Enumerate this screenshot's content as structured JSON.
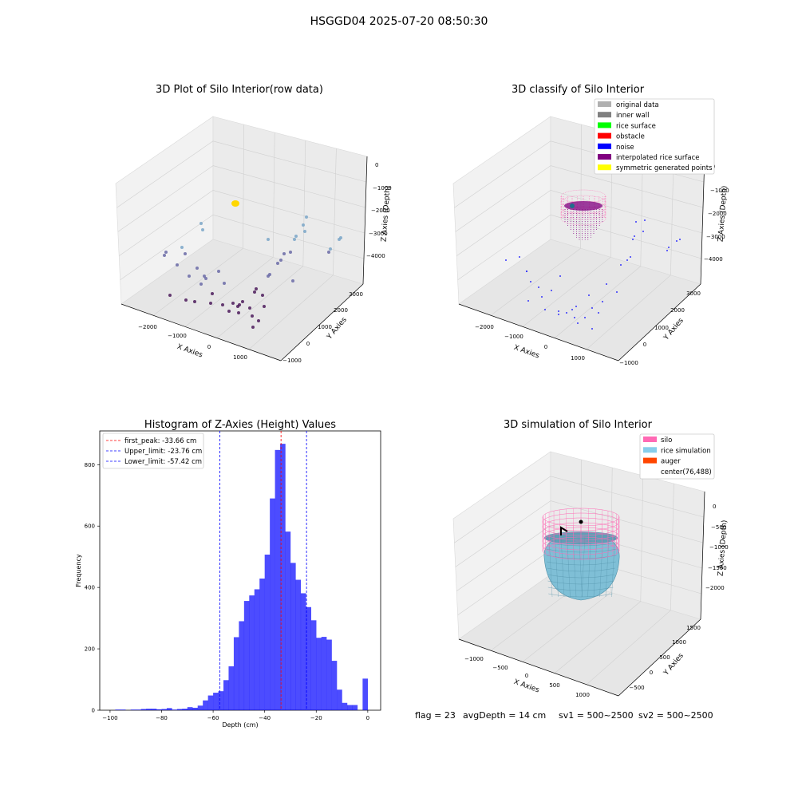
{
  "figure_title": "HSGGD04 2025-07-20 08:50:30",
  "panels": {
    "raw": {
      "title": "3D Plot of Silo Interior(row data)",
      "xlabel": "X Axies",
      "ylabel": "Y Axies",
      "zlabel": "Z Axies (Depth)",
      "xticks": [
        "−2000",
        "−1000",
        "0",
        "1000"
      ],
      "yticks": [
        "−1000",
        "0",
        "1000",
        "2000",
        "3000"
      ],
      "zticks": [
        "0",
        "−1000",
        "−2000",
        "−3000",
        "−4000"
      ]
    },
    "classify": {
      "title": "3D classify of Silo Interior",
      "xlabel": "X Axies",
      "ylabel": "Y Axies",
      "zlabel": "Z Axies (Depth)",
      "xticks": [
        "−2000",
        "−1000",
        "0",
        "1000"
      ],
      "yticks": [
        "−1000",
        "0",
        "1000",
        "2000",
        "3000"
      ],
      "zticks": [
        "0",
        "−1000",
        "−2000",
        "−3000",
        "−4000"
      ],
      "legend": [
        {
          "label": "original data",
          "color": "#b0b0b0"
        },
        {
          "label": "inner wall",
          "color": "#808080"
        },
        {
          "label": "rice surface",
          "color": "#00ff00"
        },
        {
          "label": "obstacle",
          "color": "#ff0000"
        },
        {
          "label": "noise",
          "color": "#0000ff"
        },
        {
          "label": "interpolated rice surface",
          "color": "#800080"
        },
        {
          "label": "symmetric generated points",
          "color": "#ffff00"
        }
      ]
    },
    "simulation": {
      "title": "3D simulation of Silo Interior",
      "xlabel": "X Axies",
      "ylabel": "Y Axies",
      "zlabel": "Z Axies (Depth)",
      "xticks": [
        "−1000",
        "−500",
        "0",
        "500",
        "1000"
      ],
      "yticks": [
        "−500",
        "0",
        "500",
        "1000",
        "1500"
      ],
      "zticks": [
        "0",
        "−500",
        "−1000",
        "−1500",
        "−2000"
      ],
      "legend": [
        {
          "label": "silo",
          "color": "#ff69b4"
        },
        {
          "label": "rice simulation",
          "color": "#87ceeb"
        },
        {
          "label": "auger",
          "color": "#ff4500"
        },
        {
          "label": "center(76,488)",
          "color": ""
        }
      ],
      "footer": {
        "flag": "flag = 23",
        "avg": "avgDepth = 14 cm",
        "sv1": "sv1 = 500~2500",
        "sv2": "sv2 = 500~2500"
      }
    }
  },
  "chart_data": {
    "type": "bar",
    "title": "Histogram of Z-Axies (Height) Values",
    "xlabel": "Depth (cm)",
    "ylabel": "Frequency",
    "xlim": [
      -104,
      5
    ],
    "ylim": [
      0,
      910
    ],
    "xticks": [
      -100,
      -80,
      -60,
      -40,
      -20,
      0
    ],
    "yticks": [
      0,
      200,
      400,
      600,
      800
    ],
    "bin_width": 2,
    "bar_color": "#0000ff",
    "bins": [
      {
        "x0": -98,
        "v": 2
      },
      {
        "x0": -96,
        "v": 2
      },
      {
        "x0": -92,
        "v": 2
      },
      {
        "x0": -90,
        "v": 2
      },
      {
        "x0": -88,
        "v": 4
      },
      {
        "x0": -86,
        "v": 5
      },
      {
        "x0": -84,
        "v": 5
      },
      {
        "x0": -82,
        "v": 3
      },
      {
        "x0": -80,
        "v": 4
      },
      {
        "x0": -78,
        "v": 7
      },
      {
        "x0": -76,
        "v": 2
      },
      {
        "x0": -74,
        "v": 4
      },
      {
        "x0": -72,
        "v": 5
      },
      {
        "x0": -70,
        "v": 10
      },
      {
        "x0": -68,
        "v": 8
      },
      {
        "x0": -66,
        "v": 15
      },
      {
        "x0": -64,
        "v": 32
      },
      {
        "x0": -62,
        "v": 48
      },
      {
        "x0": -60,
        "v": 57
      },
      {
        "x0": -58,
        "v": 62
      },
      {
        "x0": -56,
        "v": 98
      },
      {
        "x0": -54,
        "v": 143
      },
      {
        "x0": -52,
        "v": 238
      },
      {
        "x0": -50,
        "v": 290
      },
      {
        "x0": -48,
        "v": 356
      },
      {
        "x0": -46,
        "v": 374
      },
      {
        "x0": -44,
        "v": 394
      },
      {
        "x0": -42,
        "v": 429
      },
      {
        "x0": -40,
        "v": 507
      },
      {
        "x0": -38,
        "v": 690
      },
      {
        "x0": -36,
        "v": 848
      },
      {
        "x0": -34,
        "v": 868
      },
      {
        "x0": -32,
        "v": 582
      },
      {
        "x0": -30,
        "v": 480
      },
      {
        "x0": -28,
        "v": 425
      },
      {
        "x0": -26,
        "v": 381
      },
      {
        "x0": -24,
        "v": 336
      },
      {
        "x0": -22,
        "v": 293
      },
      {
        "x0": -20,
        "v": 236
      },
      {
        "x0": -18,
        "v": 239
      },
      {
        "x0": -16,
        "v": 230
      },
      {
        "x0": -14,
        "v": 161
      },
      {
        "x0": -12,
        "v": 67
      },
      {
        "x0": -10,
        "v": 24
      },
      {
        "x0": -8,
        "v": 17
      },
      {
        "x0": -6,
        "v": 17
      },
      {
        "x0": -2,
        "v": 103
      }
    ],
    "vlines": [
      {
        "label": "first_peak: -33.66 cm",
        "x": -33.66,
        "color": "#ff0000"
      },
      {
        "label": "Upper_limit: -23.76 cm",
        "x": -23.76,
        "color": "#0000ff"
      },
      {
        "label": "Lower_limit: -57.42 cm",
        "x": -57.42,
        "color": "#0000ff"
      }
    ]
  }
}
